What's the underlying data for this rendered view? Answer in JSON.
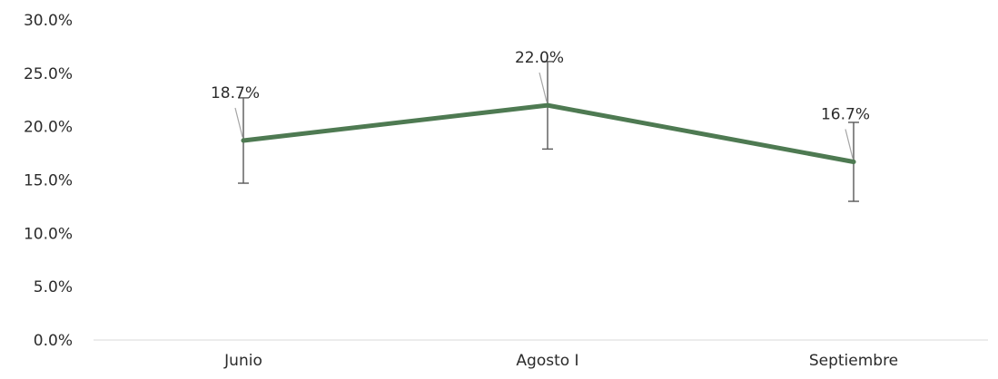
{
  "chart_data": {
    "type": "line",
    "categories": [
      "Junio",
      "Agosto I",
      "Septiembre"
    ],
    "series": [
      {
        "values": [
          18.7,
          22.0,
          16.7
        ],
        "error_low": [
          14.7,
          17.9,
          13.0
        ],
        "error_high": [
          22.7,
          26.1,
          20.4
        ],
        "data_labels": [
          "18.7%",
          "22.0%",
          "16.7%"
        ],
        "color": "#4e7a52"
      }
    ],
    "y_ticks": [
      {
        "value": 0,
        "label": "0.0%"
      },
      {
        "value": 5,
        "label": "5.0%"
      },
      {
        "value": 10,
        "label": "10.0%"
      },
      {
        "value": 15,
        "label": "15.0%"
      },
      {
        "value": 20,
        "label": "20.0%"
      },
      {
        "value": 25,
        "label": "25.0%"
      },
      {
        "value": 30,
        "label": "30.0%"
      }
    ],
    "ylim": [
      0,
      30
    ],
    "grid": false,
    "legend": "none",
    "colors": {
      "axis": "#d9d9d9",
      "error_bar": "#595959",
      "leader_line": "#a6a6a6",
      "text": "#2b2b2b"
    }
  }
}
